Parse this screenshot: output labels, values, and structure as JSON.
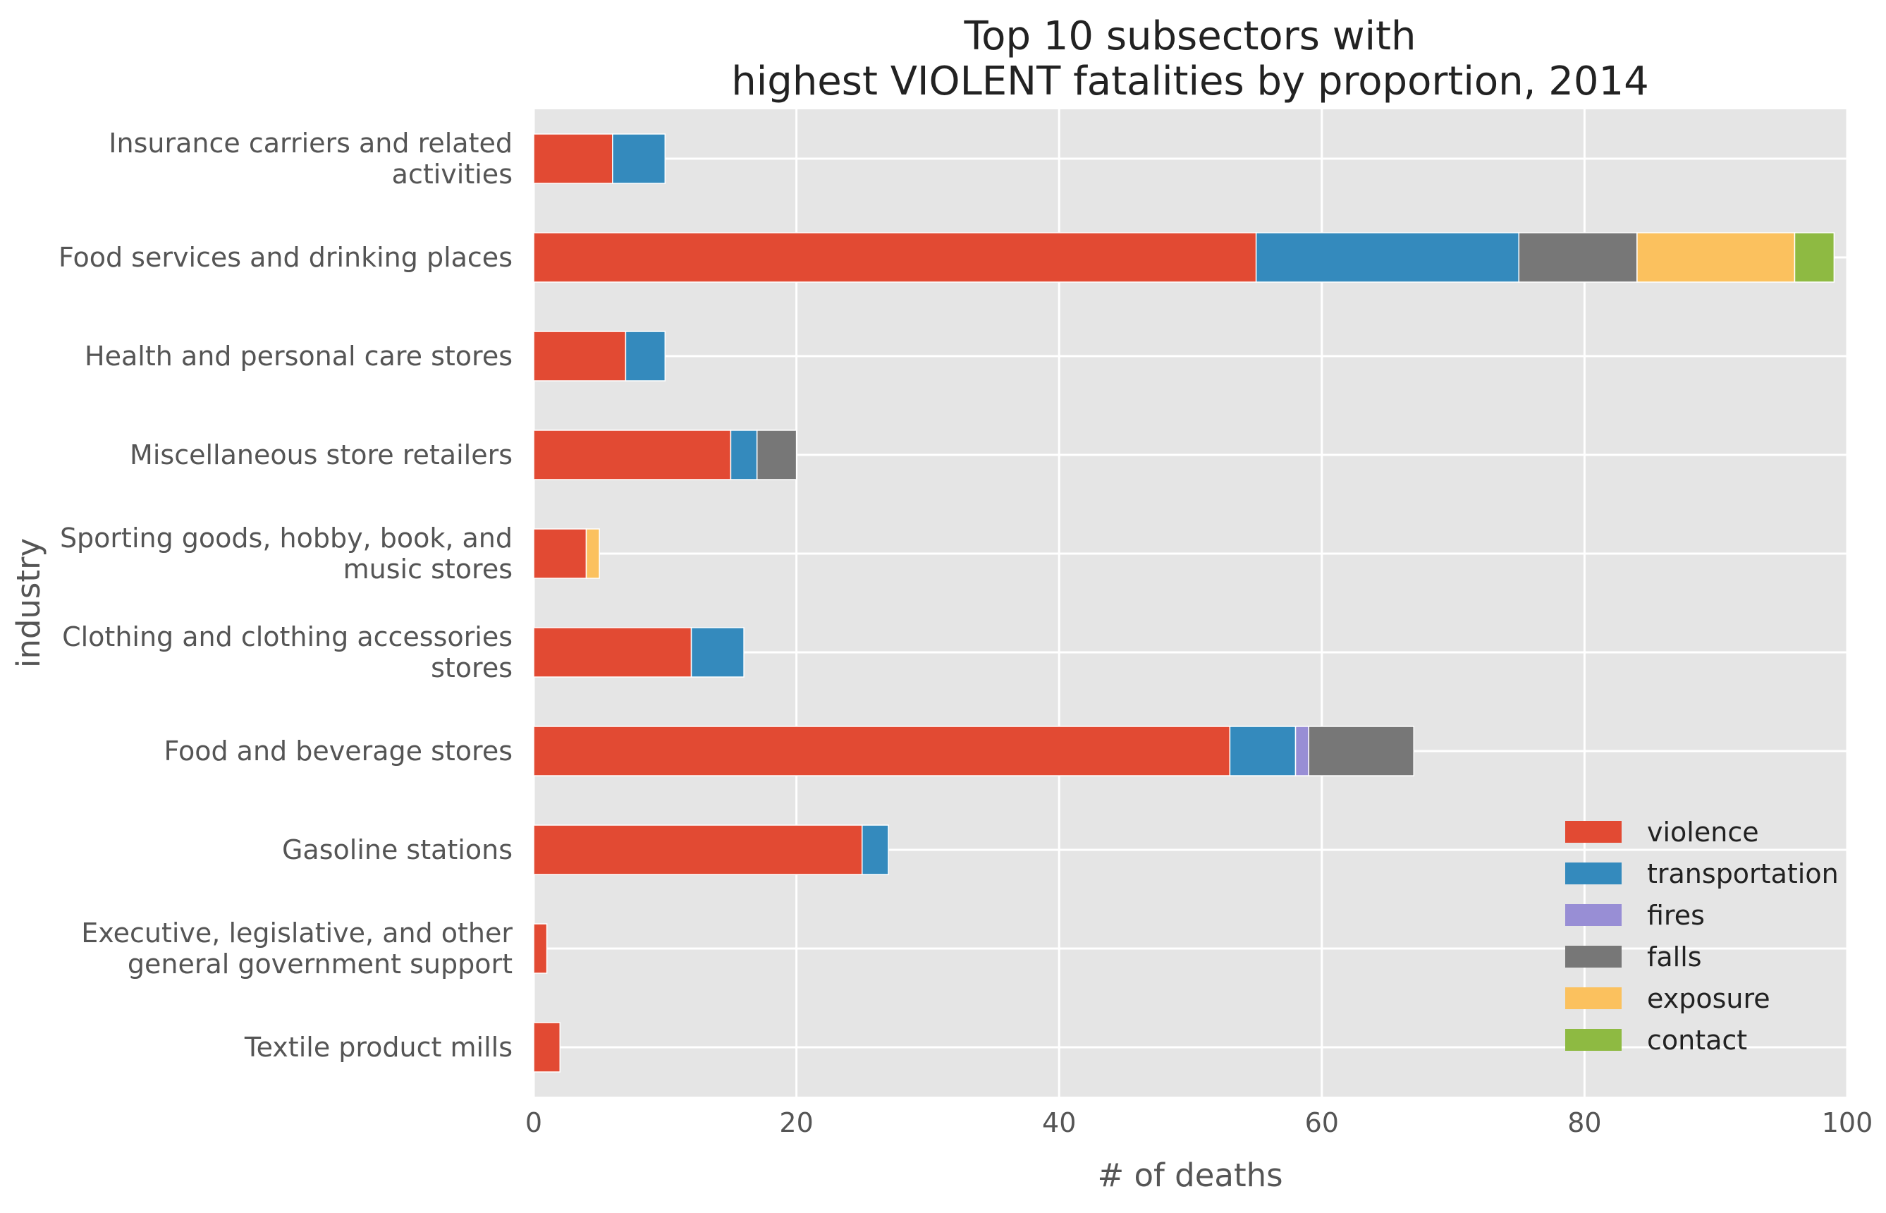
{
  "chart_data": {
    "type": "bar",
    "orientation": "horizontal",
    "stacked": true,
    "title": "Top 10 subsectors with\nhighest VIOLENT fatalities by proportion, 2014",
    "xlabel": "# of deaths",
    "ylabel": "industry",
    "xlim": [
      0,
      100
    ],
    "xticks": [
      0,
      20,
      40,
      60,
      80,
      100
    ],
    "grid": true,
    "legend_position": "lower-right",
    "categories": [
      "Insurance carriers and related\nactivities",
      "Food services and drinking places",
      "Health and personal care stores",
      "Miscellaneous store retailers",
      "Sporting goods, hobby, book, and\nmusic stores",
      "Clothing and clothing accessories\nstores",
      "Food and beverage stores",
      "Gasoline stations",
      "Executive, legislative, and other\ngeneral government support",
      "Textile product mills"
    ],
    "series": [
      {
        "name": "violence",
        "color": "#E24A33",
        "values": [
          6,
          55,
          7,
          15,
          4,
          12,
          53,
          25,
          1,
          2
        ]
      },
      {
        "name": "transportation",
        "color": "#348ABD",
        "values": [
          4,
          20,
          3,
          2,
          0,
          4,
          5,
          2,
          0,
          0
        ]
      },
      {
        "name": "fires",
        "color": "#988ED5",
        "values": [
          0,
          0,
          0,
          0,
          0,
          0,
          1,
          0,
          0,
          0
        ]
      },
      {
        "name": "falls",
        "color": "#777777",
        "values": [
          0,
          9,
          0,
          3,
          0,
          0,
          8,
          0,
          0,
          0
        ]
      },
      {
        "name": "exposure",
        "color": "#FBC15E",
        "values": [
          0,
          12,
          0,
          0,
          1,
          0,
          0,
          0,
          0,
          0
        ]
      },
      {
        "name": "contact",
        "color": "#8EBA42",
        "values": [
          0,
          3,
          0,
          0,
          0,
          0,
          0,
          0,
          0,
          0
        ]
      }
    ],
    "colors": {
      "plot_background": "#E5E5E5",
      "grid": "#FFFFFF",
      "text": "#555555",
      "title": "#222222"
    }
  }
}
